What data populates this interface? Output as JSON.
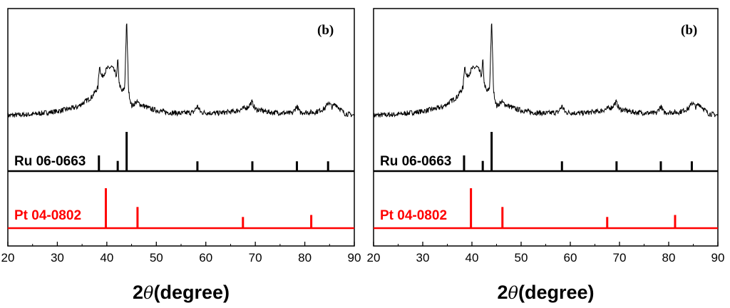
{
  "chart_data": [
    {
      "type": "line",
      "panel_label": "(b)",
      "xlabel_prefix": "2",
      "xlabel_symbol": "θ",
      "xlabel_suffix": "(degree)",
      "xlim": [
        20,
        90
      ],
      "xticks": [
        20,
        30,
        40,
        50,
        60,
        70,
        80,
        90
      ],
      "grid": false,
      "pattern": {
        "x": [
          20,
          25,
          30,
          34,
          37,
          38.2,
          38.5,
          39,
          40,
          41,
          41.5,
          42,
          42.2,
          42.5,
          43,
          43.6,
          44.0,
          44.4,
          45,
          46,
          47,
          49,
          52,
          55,
          57.5,
          58.3,
          59,
          62,
          66,
          68.5,
          69.3,
          70,
          73,
          77.5,
          78.4,
          79,
          82,
          84.2,
          84.7,
          85.5,
          86.2,
          88,
          90
        ],
        "y": [
          0.07,
          0.08,
          0.11,
          0.15,
          0.25,
          0.34,
          0.55,
          0.44,
          0.52,
          0.54,
          0.5,
          0.45,
          0.62,
          0.38,
          0.3,
          0.33,
          1.0,
          0.3,
          0.16,
          0.2,
          0.17,
          0.13,
          0.1,
          0.09,
          0.1,
          0.16,
          0.1,
          0.09,
          0.11,
          0.15,
          0.2,
          0.13,
          0.1,
          0.09,
          0.16,
          0.1,
          0.1,
          0.14,
          0.2,
          0.15,
          0.18,
          0.09,
          0.07
        ]
      },
      "references": [
        {
          "label": "Ru 06-0663",
          "color": "#000000",
          "peaks": [
            {
              "x": 38.4,
              "y": 0.4
            },
            {
              "x": 42.2,
              "y": 0.26
            },
            {
              "x": 44.0,
              "y": 1.0
            },
            {
              "x": 58.3,
              "y": 0.25
            },
            {
              "x": 69.4,
              "y": 0.25
            },
            {
              "x": 78.4,
              "y": 0.25
            },
            {
              "x": 84.7,
              "y": 0.25
            }
          ]
        },
        {
          "label": "Pt 04-0802",
          "color": "#ff0000",
          "peaks": [
            {
              "x": 39.8,
              "y": 1.0
            },
            {
              "x": 46.2,
              "y": 0.53
            },
            {
              "x": 67.5,
              "y": 0.28
            },
            {
              "x": 81.3,
              "y": 0.33
            }
          ]
        }
      ]
    },
    {
      "type": "line",
      "panel_label": "(b)",
      "xlabel_prefix": "2",
      "xlabel_symbol": "θ",
      "xlabel_suffix": "(degree)",
      "xlim": [
        20,
        90
      ],
      "xticks": [
        20,
        30,
        40,
        50,
        60,
        70,
        80,
        90
      ],
      "grid": false,
      "pattern": {
        "x": [
          20,
          25,
          30,
          34,
          37,
          38.2,
          38.5,
          39,
          40,
          41,
          41.5,
          42,
          42.2,
          42.5,
          43,
          43.6,
          44.0,
          44.4,
          45,
          46,
          47,
          49,
          52,
          55,
          57.5,
          58.3,
          59,
          62,
          66,
          68.5,
          69.3,
          70,
          73,
          77.5,
          78.4,
          79,
          82,
          84.2,
          84.7,
          85.5,
          86.2,
          88,
          90
        ],
        "y": [
          0.07,
          0.08,
          0.11,
          0.15,
          0.25,
          0.34,
          0.55,
          0.44,
          0.52,
          0.54,
          0.5,
          0.45,
          0.62,
          0.38,
          0.3,
          0.33,
          1.0,
          0.3,
          0.16,
          0.2,
          0.17,
          0.13,
          0.1,
          0.09,
          0.1,
          0.16,
          0.1,
          0.09,
          0.11,
          0.15,
          0.2,
          0.13,
          0.1,
          0.09,
          0.16,
          0.1,
          0.1,
          0.14,
          0.2,
          0.15,
          0.18,
          0.09,
          0.07
        ]
      },
      "references": [
        {
          "label": "Ru 06-0663",
          "color": "#000000",
          "peaks": [
            {
              "x": 38.4,
              "y": 0.4
            },
            {
              "x": 42.2,
              "y": 0.26
            },
            {
              "x": 44.0,
              "y": 1.0
            },
            {
              "x": 58.3,
              "y": 0.25
            },
            {
              "x": 69.4,
              "y": 0.25
            },
            {
              "x": 78.4,
              "y": 0.25
            },
            {
              "x": 84.7,
              "y": 0.25
            }
          ]
        },
        {
          "label": "Pt 04-0802",
          "color": "#ff0000",
          "peaks": [
            {
              "x": 39.8,
              "y": 1.0
            },
            {
              "x": 46.2,
              "y": 0.53
            },
            {
              "x": 67.5,
              "y": 0.28
            },
            {
              "x": 81.3,
              "y": 0.33
            }
          ]
        }
      ]
    }
  ]
}
